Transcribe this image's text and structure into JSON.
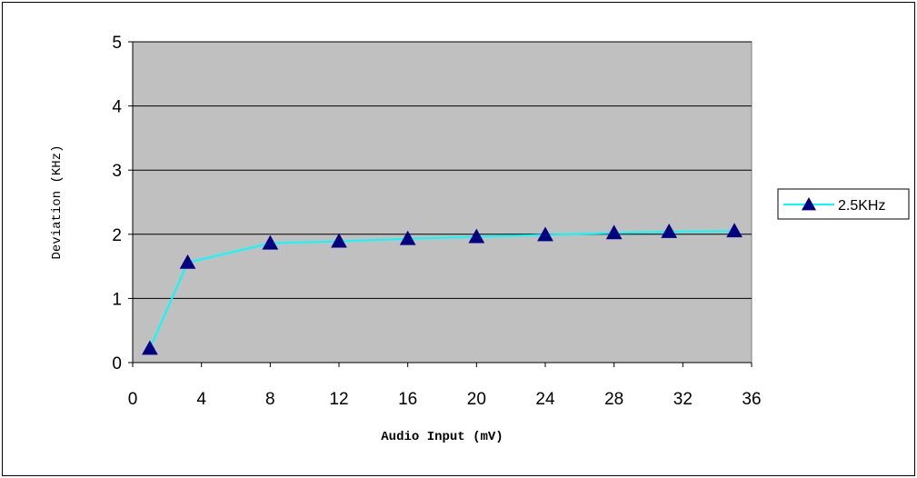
{
  "chart_data": {
    "type": "line",
    "title": "",
    "xlabel": "Audio Input (mV)",
    "ylabel": "Deviation (KHz)",
    "xlim": [
      0,
      36
    ],
    "ylim": [
      0,
      5
    ],
    "x_ticks": [
      "0",
      "4",
      "8",
      "12",
      "16",
      "20",
      "24",
      "28",
      "32",
      "36"
    ],
    "y_ticks": [
      "0",
      "1",
      "2",
      "3",
      "4",
      "5"
    ],
    "grid": "horizontal",
    "legend_position": "right",
    "plot_background": "#c0c0c0",
    "series": [
      {
        "name": "2.5KHz",
        "line_color": "#00ffff",
        "marker": "triangle",
        "marker_color": "#000080",
        "x": [
          1,
          3.2,
          8,
          12,
          16,
          20,
          24,
          28,
          31.2,
          35
        ],
        "y": [
          0.22,
          1.56,
          1.86,
          1.89,
          1.93,
          1.96,
          1.99,
          2.02,
          2.04,
          2.05
        ]
      }
    ]
  }
}
